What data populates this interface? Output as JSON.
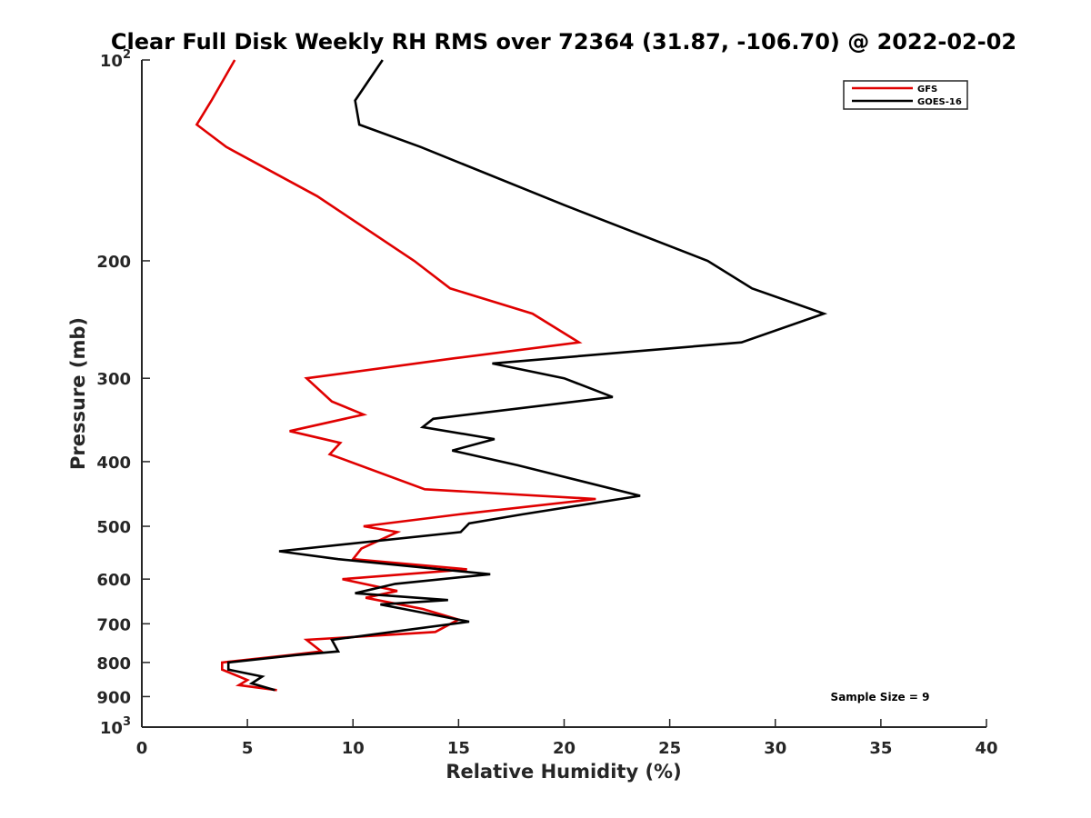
{
  "chart_data": {
    "type": "line",
    "title": "Clear Full Disk Weekly RH RMS over 72364 (31.87, -106.70) @ 2022-02-02",
    "xlabel": "Relative Humidity (%)",
    "ylabel": "Pressure (mb)",
    "xlim": [
      0,
      40
    ],
    "ylim": [
      100,
      1000
    ],
    "yscale": "log",
    "y_reversed": true,
    "grid": false,
    "legend_position": "top-right",
    "x_ticks": [
      "0",
      "5",
      "10",
      "15",
      "20",
      "25",
      "30",
      "35",
      "40"
    ],
    "y_ticks": [
      {
        "value": 100,
        "base": "10",
        "exp": "2"
      },
      {
        "value": 200,
        "label": "200"
      },
      {
        "value": 300,
        "label": "300"
      },
      {
        "value": 400,
        "label": "400"
      },
      {
        "value": 500,
        "label": "500"
      },
      {
        "value": 600,
        "label": "600"
      },
      {
        "value": 700,
        "label": "700"
      },
      {
        "value": 800,
        "label": "800"
      },
      {
        "value": 900,
        "label": "900"
      },
      {
        "value": 1000,
        "base": "10",
        "exp": "3"
      }
    ],
    "annotation": "Sample Size = 9",
    "series": [
      {
        "name": "GFS",
        "color": "#e00000",
        "points": [
          [
            4.4,
            100
          ],
          [
            3.3,
            115
          ],
          [
            2.6,
            125
          ],
          [
            4.0,
            135
          ],
          [
            8.3,
            160
          ],
          [
            12.9,
            200
          ],
          [
            14.6,
            220
          ],
          [
            18.5,
            240
          ],
          [
            20.7,
            265
          ],
          [
            14.8,
            280
          ],
          [
            7.8,
            300
          ],
          [
            9.0,
            325
          ],
          [
            10.5,
            340
          ],
          [
            7.0,
            360
          ],
          [
            9.4,
            375
          ],
          [
            8.9,
            390
          ],
          [
            13.4,
            440
          ],
          [
            21.5,
            455
          ],
          [
            15.0,
            480
          ],
          [
            10.5,
            500
          ],
          [
            12.1,
            510
          ],
          [
            10.4,
            540
          ],
          [
            10.0,
            560
          ],
          [
            15.4,
            580
          ],
          [
            9.5,
            600
          ],
          [
            12.1,
            625
          ],
          [
            10.6,
            640
          ],
          [
            13.3,
            665
          ],
          [
            15.0,
            690
          ],
          [
            13.9,
            720
          ],
          [
            7.8,
            740
          ],
          [
            8.5,
            770
          ],
          [
            7.0,
            780
          ],
          [
            3.8,
            800
          ],
          [
            3.8,
            820
          ],
          [
            5.0,
            850
          ],
          [
            4.6,
            865
          ],
          [
            6.4,
            880
          ]
        ]
      },
      {
        "name": "GOES-16",
        "color": "#000000",
        "points": [
          [
            11.4,
            100
          ],
          [
            10.1,
            115
          ],
          [
            10.3,
            125
          ],
          [
            13.2,
            135
          ],
          [
            20.0,
            165
          ],
          [
            26.8,
            200
          ],
          [
            28.9,
            220
          ],
          [
            32.3,
            240
          ],
          [
            28.4,
            265
          ],
          [
            16.6,
            285
          ],
          [
            20.0,
            300
          ],
          [
            22.3,
            320
          ],
          [
            13.8,
            345
          ],
          [
            13.3,
            355
          ],
          [
            16.7,
            370
          ],
          [
            14.7,
            385
          ],
          [
            17.8,
            405
          ],
          [
            19.8,
            420
          ],
          [
            23.6,
            450
          ],
          [
            18.0,
            480
          ],
          [
            15.5,
            495
          ],
          [
            15.1,
            510
          ],
          [
            6.5,
            545
          ],
          [
            9.3,
            560
          ],
          [
            16.5,
            590
          ],
          [
            12.0,
            610
          ],
          [
            10.1,
            630
          ],
          [
            14.5,
            645
          ],
          [
            11.3,
            655
          ],
          [
            12.4,
            665
          ],
          [
            15.5,
            695
          ],
          [
            9.0,
            740
          ],
          [
            9.3,
            770
          ],
          [
            7.3,
            780
          ],
          [
            4.1,
            800
          ],
          [
            4.1,
            820
          ],
          [
            5.7,
            840
          ],
          [
            5.2,
            860
          ],
          [
            6.3,
            880
          ]
        ]
      }
    ]
  }
}
